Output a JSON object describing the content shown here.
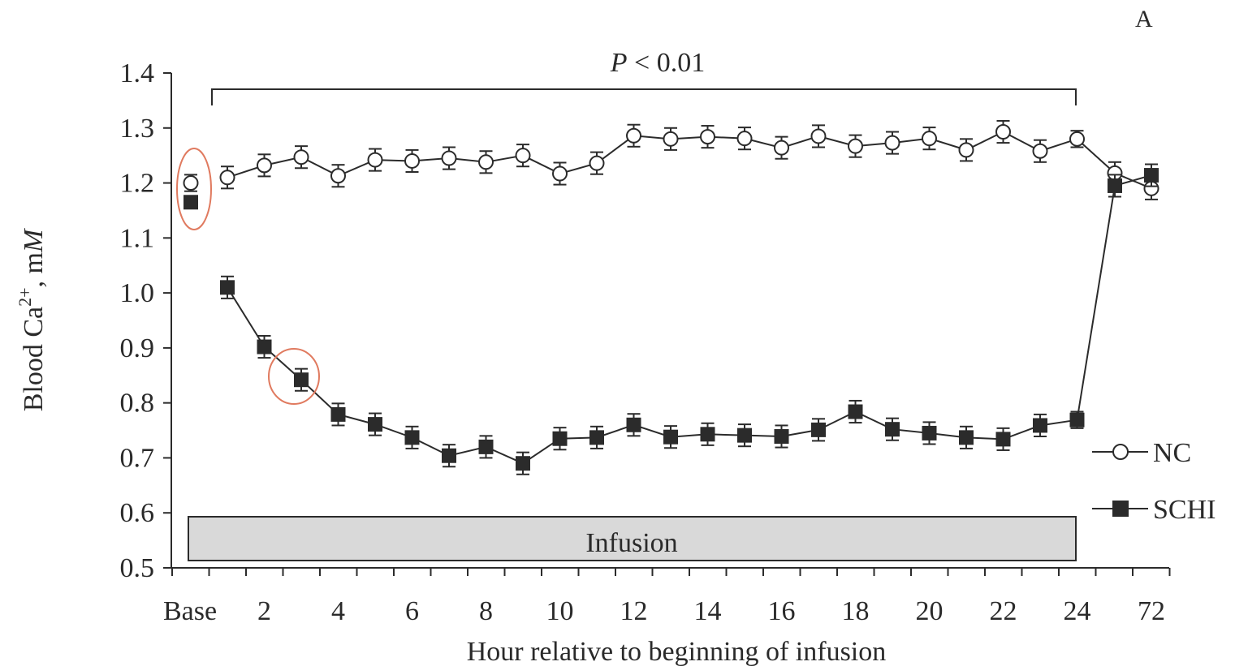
{
  "chart_data": {
    "type": "line",
    "panel_label": "A",
    "xlabel": "Hour relative to beginning of infusion",
    "ylabel_main": "Blood Ca",
    "ylabel_sup": "2+",
    "ylabel_unit_prefix": ", m",
    "ylabel_unit_italic": "M",
    "ylim": [
      0.5,
      1.4
    ],
    "yticks": [
      0.5,
      0.6,
      0.7,
      0.8,
      0.9,
      1.0,
      1.1,
      1.2,
      1.3,
      1.4
    ],
    "ytick_labels": [
      "0.5",
      "0.6",
      "0.7",
      "0.8",
      "0.9",
      "1.0",
      "1.1",
      "1.2",
      "1.3",
      "1.4"
    ],
    "x_tick_labels": [
      {
        "x": "Base",
        "label": "Base"
      },
      {
        "x": 2,
        "label": "2"
      },
      {
        "x": 4,
        "label": "4"
      },
      {
        "x": 6,
        "label": "6"
      },
      {
        "x": 8,
        "label": "8"
      },
      {
        "x": 10,
        "label": "10"
      },
      {
        "x": 12,
        "label": "12"
      },
      {
        "x": 14,
        "label": "14"
      },
      {
        "x": 16,
        "label": "16"
      },
      {
        "x": 18,
        "label": "18"
      },
      {
        "x": 20,
        "label": "20"
      },
      {
        "x": 22,
        "label": "22"
      },
      {
        "x": 24,
        "label": "24"
      },
      {
        "x": 72,
        "label": "72"
      }
    ],
    "x": [
      "Base",
      1,
      2,
      3,
      4,
      5,
      6,
      7,
      8,
      9,
      10,
      11,
      12,
      13,
      14,
      15,
      16,
      17,
      18,
      19,
      20,
      21,
      22,
      23,
      24,
      48,
      72
    ],
    "series": [
      {
        "name": "NC",
        "marker": "open-circle",
        "values": [
          1.2,
          1.21,
          1.232,
          1.247,
          1.213,
          1.242,
          1.24,
          1.245,
          1.238,
          1.25,
          1.217,
          1.236,
          1.286,
          1.28,
          1.284,
          1.281,
          1.264,
          1.285,
          1.267,
          1.273,
          1.281,
          1.26,
          1.293,
          1.258,
          1.28,
          1.218,
          1.19
        ],
        "errors": [
          0.015,
          0.02,
          0.02,
          0.02,
          0.02,
          0.02,
          0.02,
          0.02,
          0.02,
          0.02,
          0.02,
          0.02,
          0.02,
          0.02,
          0.02,
          0.02,
          0.02,
          0.02,
          0.02,
          0.02,
          0.02,
          0.02,
          0.02,
          0.02,
          0.015,
          0.02,
          0.02
        ]
      },
      {
        "name": "SCHI",
        "marker": "filled-square",
        "values": [
          1.165,
          1.01,
          0.902,
          0.842,
          0.779,
          0.761,
          0.737,
          0.704,
          0.72,
          0.69,
          0.735,
          0.737,
          0.76,
          0.738,
          0.743,
          0.741,
          0.739,
          0.751,
          0.784,
          0.752,
          0.745,
          0.737,
          0.734,
          0.759,
          0.769,
          1.195,
          1.214
        ],
        "errors": [
          0.01,
          0.02,
          0.02,
          0.02,
          0.02,
          0.02,
          0.02,
          0.02,
          0.02,
          0.02,
          0.02,
          0.02,
          0.02,
          0.02,
          0.02,
          0.02,
          0.02,
          0.02,
          0.02,
          0.02,
          0.02,
          0.02,
          0.02,
          0.02,
          0.015,
          0.02,
          0.02
        ]
      }
    ],
    "significance": {
      "label_italic": "P",
      "label_rest": " < 0.01",
      "from_x": 0.5,
      "to_x": 24
    },
    "infusion_bar": {
      "label": "Infusion",
      "from_x": 0,
      "to_x": 24
    },
    "highlight_circles": [
      {
        "x": "Base"
      },
      {
        "x": 3,
        "series": "SCHI"
      }
    ],
    "legend_placement": "right",
    "grid": false,
    "colors": {
      "line": "#2b2b2b",
      "bar_fill": "#d9d9d9",
      "highlight": "#e07a5f"
    }
  }
}
